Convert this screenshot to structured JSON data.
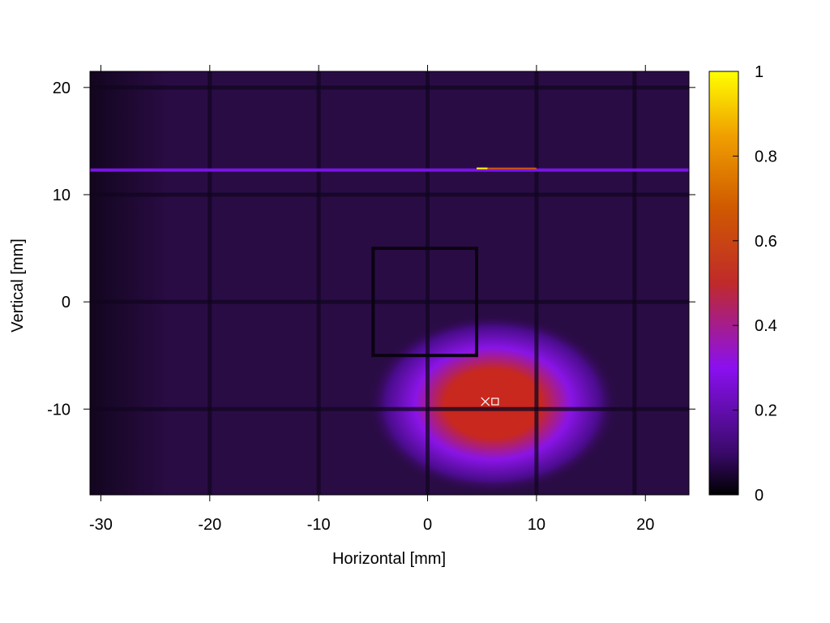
{
  "chart_data": {
    "type": "heatmap",
    "title": "",
    "xlabel": "Horizontal [mm]",
    "ylabel": "Vertical [mm]",
    "xlim": [
      -31,
      24
    ],
    "ylim": [
      -18,
      21.5
    ],
    "x_ticks": [
      -30,
      -20,
      -10,
      0,
      10,
      20
    ],
    "y_ticks": [
      -10,
      0,
      10,
      20
    ],
    "colorbar": {
      "range": [
        0,
        1
      ],
      "ticks": [
        0,
        0.2,
        0.4,
        0.6,
        0.8,
        1
      ],
      "tick_labels": [
        "0",
        "0.2",
        "0.4",
        "0.6",
        "0.8",
        "1"
      ],
      "palette": [
        "#000000",
        "#3a0a6a",
        "#8a10f0",
        "#c02a2a",
        "#d05a00",
        "#f0a000",
        "#ffff00"
      ]
    },
    "background_level": 0.06,
    "grid_wires": {
      "vertical_x": [
        -20,
        -10,
        0,
        10,
        19
      ],
      "horizontal_y": [
        20,
        10,
        0,
        -10
      ]
    },
    "beam_spot": {
      "center": [
        6,
        -9.5
      ],
      "peak_value": 0.55,
      "sigma_x": 5.5,
      "sigma_y": 4
    },
    "region_of_interest": {
      "x_range": [
        -5,
        4.5
      ],
      "y_range": [
        -5,
        5
      ]
    },
    "bright_line": {
      "y": 12.3,
      "x_range": [
        -31,
        24
      ],
      "value": 0.25
    },
    "markers": [
      {
        "symbol": "cross",
        "x": 5.3,
        "y": -9.3
      },
      {
        "symbol": "square",
        "x": 6.2,
        "y": -9.3
      }
    ]
  }
}
